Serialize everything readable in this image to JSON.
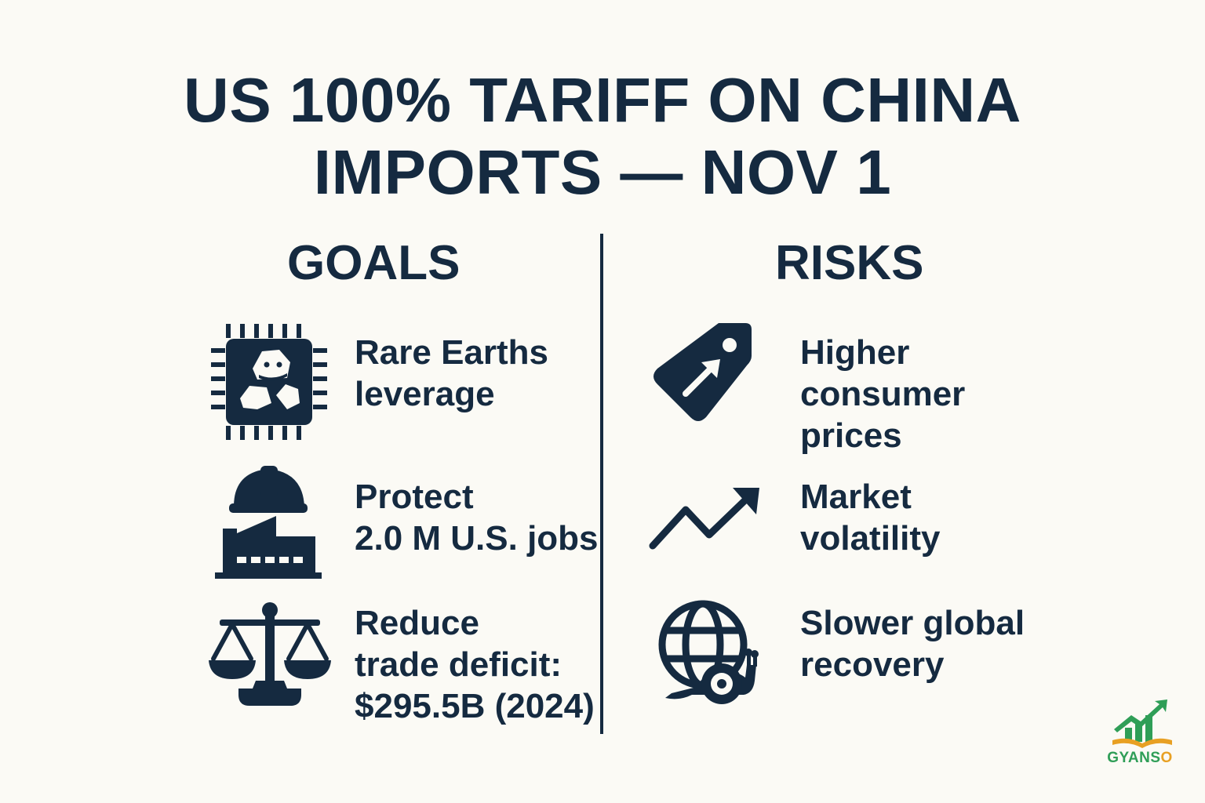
{
  "title": {
    "line1": "US 100% TARIFF ON CHINA",
    "line2": "IMPORTS — NOV 1"
  },
  "goals": {
    "heading": "GOALS",
    "items": [
      {
        "icon": "rare-earth-chip-icon",
        "lines": [
          "Rare Earths",
          "leverage"
        ]
      },
      {
        "icon": "factory-hardhat-icon",
        "lines": [
          "Protect",
          "2.0 M U.S. jobs"
        ]
      },
      {
        "icon": "balance-scale-icon",
        "lines": [
          "Reduce",
          "trade deficit:",
          "$295.5B (2024)"
        ]
      }
    ]
  },
  "risks": {
    "heading": "RISKS",
    "items": [
      {
        "icon": "price-tag-up-icon",
        "lines": [
          "Higher",
          "consumer",
          "prices"
        ]
      },
      {
        "icon": "trend-up-arrow-icon",
        "lines": [
          "Market",
          "volatility"
        ]
      },
      {
        "icon": "globe-snail-icon",
        "lines": [
          "Slower global",
          "recovery"
        ]
      }
    ]
  },
  "logo": {
    "text_main": "GYANS",
    "text_accent": "O"
  },
  "colors": {
    "ink": "#152a40",
    "background": "#fbfaf5",
    "logo_green": "#2f9e57",
    "logo_orange": "#e8a023"
  }
}
